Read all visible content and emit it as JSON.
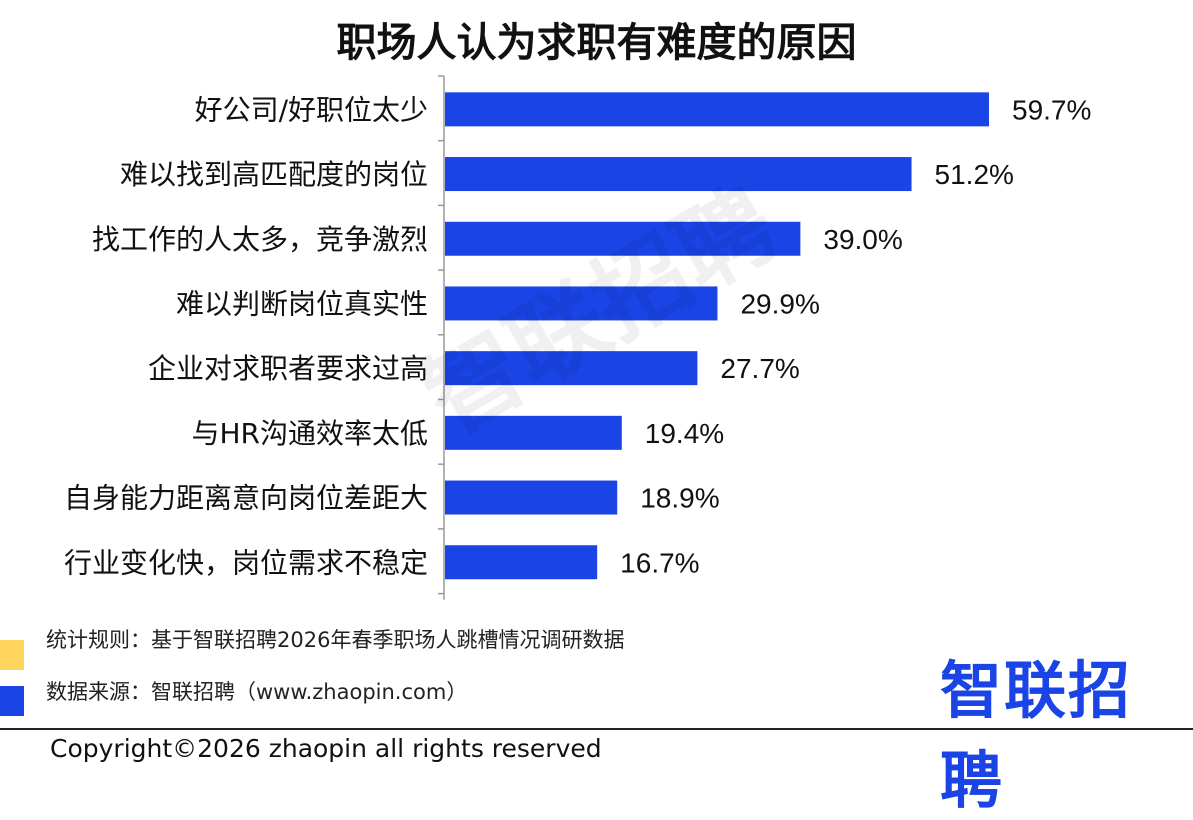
{
  "chart_data": {
    "type": "bar",
    "orientation": "horizontal",
    "title": "职场人认为求职有难度的原因",
    "categories": [
      "好公司/好职位太少",
      "难以找到高匹配度的岗位",
      "找工作的人太多，竞争激烈",
      "难以判断岗位真实性",
      "企业对求职者要求过高",
      "与HR沟通效率太低",
      "自身能力距离意向岗位差距大",
      "行业变化快，岗位需求不稳定"
    ],
    "values": [
      59.7,
      51.2,
      39.0,
      29.9,
      27.7,
      19.4,
      18.9,
      16.7
    ],
    "data_labels": [
      "59.7%",
      "51.2%",
      "39.0%",
      "29.9%",
      "27.7%",
      "19.4%",
      "18.9%",
      "16.7%"
    ],
    "value_unit": "%",
    "xlim": [
      0,
      60
    ],
    "grid": false,
    "bar_color": "#1a44e6"
  },
  "footer": {
    "rule_note": "统计规则：基于智联招聘2026年春季职场人跳槽情况调研数据",
    "source_note": "数据来源：智联招聘（www.zhaopin.com）",
    "copyright": "Copyright©2026 zhaopin all rights reserved"
  },
  "branding": {
    "logo_text": "智联招聘",
    "watermark_text": "智联招聘",
    "brand_color": "#1a44e6",
    "accent_color": "#ffd55e"
  }
}
